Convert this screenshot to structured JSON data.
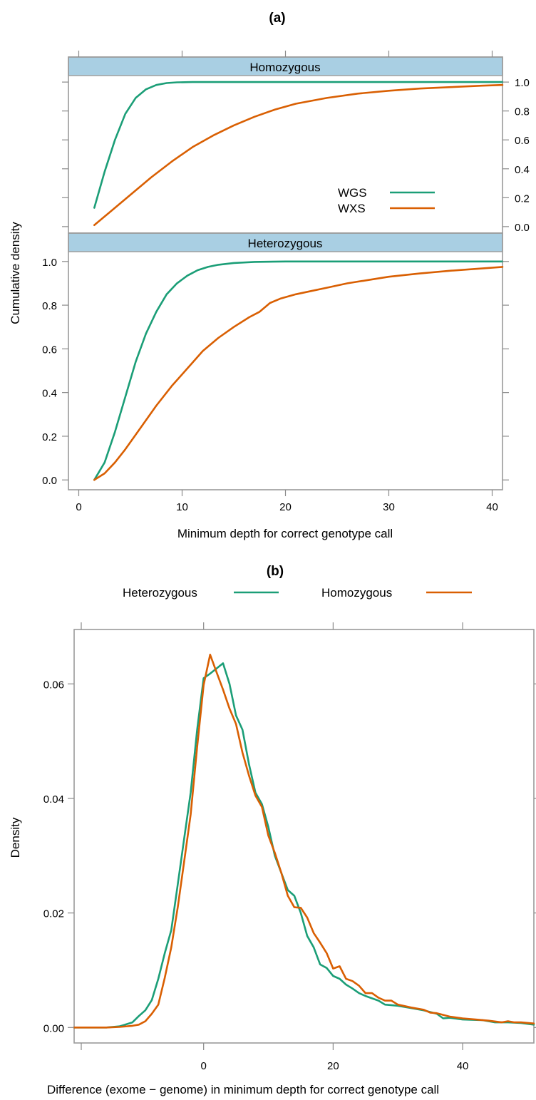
{
  "chart_data": [
    {
      "id": "a",
      "type": "line",
      "panel_label": "(a)",
      "xlabel": "Minimum depth for correct genotype call",
      "ylabel": "Cumulative density",
      "xlim": [
        -1,
        41
      ],
      "ylim": [
        -0.045,
        1.045
      ],
      "x_ticks": [
        "0",
        "10",
        "20",
        "30",
        "40"
      ],
      "y_ticks": [
        "0.0",
        "0.2",
        "0.4",
        "0.6",
        "0.8",
        "1.0"
      ],
      "legend": [
        {
          "name": "WGS",
          "color": "#1b9e77"
        },
        {
          "name": "WXS",
          "color": "#d95f02"
        }
      ],
      "legend_position": "inside upper panel, right",
      "grid": false,
      "panels": [
        {
          "strip": "Homozygous",
          "y_axis_side": "right",
          "series": [
            {
              "name": "WGS",
              "color": "#1b9e77",
              "points": [
                [
                  1.5,
                  0.13
                ],
                [
                  2.5,
                  0.38
                ],
                [
                  3.5,
                  0.6
                ],
                [
                  4.5,
                  0.78
                ],
                [
                  5.5,
                  0.89
                ],
                [
                  6.5,
                  0.95
                ],
                [
                  7.5,
                  0.98
                ],
                [
                  8.5,
                  0.993
                ],
                [
                  9.5,
                  0.998
                ],
                [
                  11,
                  1.0
                ],
                [
                  15,
                  1.0
                ],
                [
                  20,
                  1.0
                ],
                [
                  41,
                  1.0
                ]
              ]
            },
            {
              "name": "WXS",
              "color": "#d95f02",
              "points": [
                [
                  1.5,
                  0.01
                ],
                [
                  3,
                  0.1
                ],
                [
                  5,
                  0.22
                ],
                [
                  7,
                  0.34
                ],
                [
                  9,
                  0.45
                ],
                [
                  11,
                  0.55
                ],
                [
                  13,
                  0.63
                ],
                [
                  15,
                  0.7
                ],
                [
                  17,
                  0.76
                ],
                [
                  19,
                  0.81
                ],
                [
                  21,
                  0.85
                ],
                [
                  24,
                  0.89
                ],
                [
                  27,
                  0.92
                ],
                [
                  30,
                  0.94
                ],
                [
                  33,
                  0.955
                ],
                [
                  36,
                  0.965
                ],
                [
                  39,
                  0.975
                ],
                [
                  41,
                  0.98
                ]
              ]
            }
          ]
        },
        {
          "strip": "Heterozygous",
          "y_axis_side": "left",
          "series": [
            {
              "name": "WGS",
              "color": "#1b9e77",
              "points": [
                [
                  1.5,
                  0.0
                ],
                [
                  2.5,
                  0.08
                ],
                [
                  3.5,
                  0.22
                ],
                [
                  4.5,
                  0.38
                ],
                [
                  5.5,
                  0.54
                ],
                [
                  6.5,
                  0.67
                ],
                [
                  7.5,
                  0.77
                ],
                [
                  8.5,
                  0.85
                ],
                [
                  9.5,
                  0.9
                ],
                [
                  10.5,
                  0.935
                ],
                [
                  11.5,
                  0.96
                ],
                [
                  12.5,
                  0.975
                ],
                [
                  13.5,
                  0.985
                ],
                [
                  15,
                  0.993
                ],
                [
                  17,
                  0.998
                ],
                [
                  20,
                  1.0
                ],
                [
                  41,
                  1.0
                ]
              ]
            },
            {
              "name": "WXS",
              "color": "#d95f02",
              "points": [
                [
                  1.5,
                  0.0
                ],
                [
                  2.5,
                  0.03
                ],
                [
                  3.5,
                  0.08
                ],
                [
                  4.5,
                  0.14
                ],
                [
                  6,
                  0.24
                ],
                [
                  7.5,
                  0.34
                ],
                [
                  9,
                  0.43
                ],
                [
                  10.5,
                  0.51
                ],
                [
                  12,
                  0.59
                ],
                [
                  13.5,
                  0.65
                ],
                [
                  15,
                  0.7
                ],
                [
                  16.5,
                  0.745
                ],
                [
                  17.5,
                  0.77
                ],
                [
                  18.5,
                  0.81
                ],
                [
                  19.5,
                  0.83
                ],
                [
                  21,
                  0.85
                ],
                [
                  22.5,
                  0.865
                ],
                [
                  24,
                  0.88
                ],
                [
                  26,
                  0.9
                ],
                [
                  28,
                  0.915
                ],
                [
                  30,
                  0.93
                ],
                [
                  33,
                  0.945
                ],
                [
                  36,
                  0.958
                ],
                [
                  39,
                  0.968
                ],
                [
                  41,
                  0.975
                ]
              ]
            }
          ]
        }
      ]
    },
    {
      "id": "b",
      "type": "line",
      "panel_label": "(b)",
      "xlabel": "Difference (exome − genome) in minimum depth for correct genotype call",
      "ylabel": "Density",
      "xlim": [
        -20,
        51
      ],
      "ylim": [
        -0.0027,
        0.0695
      ],
      "x_ticks": [
        "0",
        "20",
        "40"
      ],
      "y_ticks": [
        "0.00",
        "0.02",
        "0.04",
        "0.06"
      ],
      "legend_position": "top, above plot",
      "grid": false,
      "series": [
        {
          "name": "Heterozygous",
          "color": "#1b9e77",
          "points": [
            [
              -20,
              0.0
            ],
            [
              -15,
              0.0
            ],
            [
              -13,
              0.0002
            ],
            [
              -11,
              0.0009
            ],
            [
              -10,
              0.002
            ],
            [
              -9,
              0.003
            ],
            [
              -8,
              0.0048
            ],
            [
              -7,
              0.0085
            ],
            [
              -6,
              0.013
            ],
            [
              -5,
              0.017
            ],
            [
              -4,
              0.025
            ],
            [
              -3,
              0.033
            ],
            [
              -2,
              0.041
            ],
            [
              -1,
              0.052
            ],
            [
              0,
              0.061
            ],
            [
              1,
              0.0618
            ],
            [
              2,
              0.0627
            ],
            [
              3,
              0.0636
            ],
            [
              4,
              0.06
            ],
            [
              5,
              0.0545
            ],
            [
              6,
              0.052
            ],
            [
              7,
              0.046
            ],
            [
              8,
              0.041
            ],
            [
              9,
              0.039
            ],
            [
              10,
              0.035
            ],
            [
              11,
              0.03
            ],
            [
              12,
              0.027
            ],
            [
              13,
              0.024
            ],
            [
              14,
              0.023
            ],
            [
              15,
              0.02
            ],
            [
              16,
              0.016
            ],
            [
              17,
              0.014
            ],
            [
              18,
              0.011
            ],
            [
              19,
              0.0104
            ],
            [
              20,
              0.009
            ],
            [
              21,
              0.0085
            ],
            [
              22,
              0.0075
            ],
            [
              23,
              0.0068
            ],
            [
              24,
              0.006
            ],
            [
              25,
              0.0055
            ],
            [
              27,
              0.0047
            ],
            [
              28,
              0.004
            ],
            [
              30,
              0.0038
            ],
            [
              32,
              0.0034
            ],
            [
              34,
              0.003
            ],
            [
              36,
              0.0024
            ],
            [
              37,
              0.0016
            ],
            [
              38,
              0.0017
            ],
            [
              40,
              0.0014
            ],
            [
              43,
              0.0013
            ],
            [
              45,
              0.0009
            ],
            [
              47,
              0.0009
            ],
            [
              49,
              0.0008
            ],
            [
              51,
              0.0005
            ]
          ]
        },
        {
          "name": "Homozygous",
          "color": "#d95f02",
          "points": [
            [
              -20,
              0.0
            ],
            [
              -15,
              0.0
            ],
            [
              -13,
              0.0001
            ],
            [
              -11,
              0.0003
            ],
            [
              -10,
              0.0005
            ],
            [
              -9,
              0.0011
            ],
            [
              -8,
              0.0024
            ],
            [
              -7,
              0.004
            ],
            [
              -6,
              0.0087
            ],
            [
              -5,
              0.014
            ],
            [
              -4,
              0.021
            ],
            [
              -3,
              0.029
            ],
            [
              -2,
              0.0372
            ],
            [
              -1,
              0.049
            ],
            [
              0,
              0.0598
            ],
            [
              1,
              0.0651
            ],
            [
              2,
              0.062
            ],
            [
              3,
              0.059
            ],
            [
              4,
              0.0557
            ],
            [
              5,
              0.053
            ],
            [
              6,
              0.048
            ],
            [
              7,
              0.044
            ],
            [
              8,
              0.0405
            ],
            [
              9,
              0.0385
            ],
            [
              10,
              0.0335
            ],
            [
              11,
              0.0305
            ],
            [
              12,
              0.027
            ],
            [
              13,
              0.023
            ],
            [
              14,
              0.021
            ],
            [
              15,
              0.0209
            ],
            [
              16,
              0.0192
            ],
            [
              17,
              0.0165
            ],
            [
              18,
              0.0148
            ],
            [
              19,
              0.013
            ],
            [
              20,
              0.0103
            ],
            [
              21,
              0.0107
            ],
            [
              22,
              0.0085
            ],
            [
              23,
              0.0081
            ],
            [
              24,
              0.0073
            ],
            [
              25,
              0.006
            ],
            [
              26,
              0.006
            ],
            [
              27,
              0.0052
            ],
            [
              28,
              0.0047
            ],
            [
              29,
              0.0047
            ],
            [
              30,
              0.004
            ],
            [
              32,
              0.0035
            ],
            [
              34,
              0.0031
            ],
            [
              35,
              0.0026
            ],
            [
              36,
              0.0025
            ],
            [
              38,
              0.0019
            ],
            [
              40,
              0.0016
            ],
            [
              42,
              0.0014
            ],
            [
              44,
              0.0012
            ],
            [
              46,
              0.0009
            ],
            [
              47,
              0.0011
            ],
            [
              48,
              0.0009
            ],
            [
              49,
              0.0009
            ],
            [
              51,
              0.0007
            ]
          ]
        }
      ]
    }
  ]
}
